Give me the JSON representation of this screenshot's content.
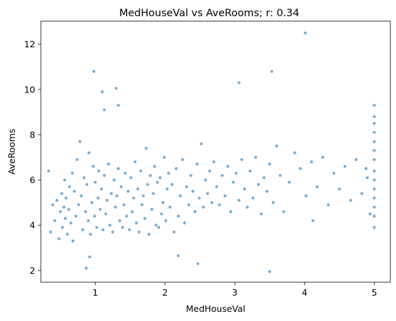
{
  "chart_data": {
    "type": "scatter",
    "title": "MedHouseVal vs AveRooms; r: 0.34",
    "xlabel": "MedHouseVal",
    "ylabel": "AveRooms",
    "xlim": [
      0.22,
      5.23
    ],
    "ylim": [
      1.48,
      13.02
    ],
    "xticks": [
      1,
      2,
      3,
      4,
      5
    ],
    "yticks": [
      2,
      4,
      6,
      8,
      10,
      12
    ],
    "grid": false,
    "legend": "none",
    "point_color": "#1f77b4",
    "point_alpha": 0.6,
    "x": [
      0.33,
      0.36,
      0.39,
      0.42,
      0.45,
      0.48,
      0.5,
      0.52,
      0.53,
      0.55,
      0.56,
      0.57,
      0.58,
      0.6,
      0.62,
      0.63,
      0.65,
      0.67,
      0.68,
      0.7,
      0.72,
      0.74,
      0.76,
      0.78,
      0.8,
      0.82,
      0.84,
      0.86,
      0.88,
      0.9,
      0.91,
      0.93,
      0.95,
      0.97,
      0.99,
      1.0,
      1.02,
      1.04,
      1.05,
      1.07,
      1.09,
      1.11,
      1.13,
      1.15,
      1.17,
      1.19,
      1.21,
      1.23,
      1.25,
      1.27,
      1.29,
      1.31,
      1.33,
      1.35,
      1.37,
      1.39,
      1.41,
      1.43,
      1.45,
      1.47,
      1.49,
      1.51,
      1.53,
      1.55,
      1.57,
      1.59,
      1.61,
      1.63,
      1.65,
      1.67,
      1.69,
      1.71,
      1.73,
      1.75,
      1.77,
      1.79,
      1.81,
      1.83,
      1.85,
      1.87,
      1.89,
      1.91,
      1.93,
      1.95,
      1.97,
      1.99,
      2.01,
      2.03,
      2.05,
      2.07,
      2.1,
      2.13,
      2.16,
      2.19,
      2.22,
      2.25,
      2.28,
      2.31,
      2.34,
      2.37,
      2.4,
      2.43,
      2.46,
      2.49,
      2.52,
      2.55,
      2.58,
      2.61,
      2.64,
      2.67,
      2.7,
      2.74,
      2.78,
      2.82,
      2.86,
      2.9,
      2.94,
      2.98,
      3.02,
      3.06,
      3.1,
      3.14,
      3.18,
      3.22,
      3.26,
      3.3,
      3.34,
      3.38,
      3.42,
      3.46,
      3.5,
      3.55,
      3.6,
      3.65,
      3.7,
      3.78,
      3.86,
      3.94,
      4.02,
      4.1,
      4.18,
      4.26,
      4.34,
      4.42,
      4.5,
      4.58,
      4.66,
      4.74,
      4.82,
      4.9,
      5.0,
      5.0,
      5.0,
      5.0,
      5.0,
      5.0,
      5.0,
      5.0,
      5.0,
      5.0,
      5.0,
      5.0,
      5.0,
      5.0,
      0.98,
      1.1,
      1.13,
      1.3,
      1.33,
      3.06,
      3.53,
      4.01,
      0.87,
      3.5,
      4.12,
      0.92,
      2.47,
      2.19,
      4.94,
      4.88
    ],
    "y": [
      6.4,
      3.7,
      4.9,
      4.2,
      5.1,
      3.4,
      4.6,
      5.4,
      3.9,
      4.8,
      6.0,
      4.3,
      5.2,
      3.6,
      4.7,
      5.7,
      4.1,
      6.3,
      3.3,
      5.5,
      4.4,
      6.9,
      4.9,
      7.7,
      5.3,
      3.8,
      6.1,
      4.6,
      5.8,
      4.2,
      7.2,
      3.6,
      5.0,
      6.6,
      4.4,
      5.9,
      3.9,
      5.2,
      6.4,
      4.7,
      5.6,
      3.8,
      6.2,
      4.5,
      5.1,
      6.7,
      4.0,
      5.4,
      3.7,
      6.0,
      4.8,
      5.3,
      6.5,
      4.2,
      5.7,
      3.9,
      4.9,
      6.3,
      4.4,
      5.5,
      3.8,
      6.1,
      4.6,
      5.2,
      6.8,
      4.1,
      5.6,
      3.7,
      6.4,
      4.9,
      5.3,
      4.3,
      7.4,
      5.8,
      3.6,
      6.2,
      4.7,
      5.4,
      6.6,
      4.0,
      5.9,
      3.9,
      6.1,
      4.5,
      5.0,
      7.0,
      4.2,
      5.6,
      6.3,
      4.8,
      5.8,
      3.7,
      6.5,
      4.4,
      5.3,
      6.9,
      4.1,
      5.7,
      4.9,
      6.2,
      5.5,
      4.6,
      6.7,
      5.2,
      7.6,
      4.8,
      6.0,
      5.4,
      6.4,
      5.0,
      6.8,
      5.7,
      4.9,
      6.2,
      5.3,
      6.6,
      4.6,
      5.9,
      6.3,
      5.1,
      6.9,
      5.6,
      4.8,
      6.4,
      5.2,
      7.0,
      5.8,
      4.5,
      6.1,
      5.5,
      6.7,
      5.0,
      7.5,
      6.2,
      4.6,
      5.9,
      7.2,
      6.5,
      5.3,
      6.8,
      5.7,
      7.0,
      4.9,
      6.3,
      5.6,
      6.6,
      5.1,
      6.9,
      5.4,
      6.1,
      9.3,
      8.8,
      8.5,
      8.1,
      7.7,
      7.3,
      6.9,
      6.4,
      6.0,
      5.6,
      5.2,
      4.8,
      4.4,
      3.9,
      10.8,
      9.9,
      9.1,
      10.05,
      9.3,
      10.3,
      10.8,
      12.5,
      2.1,
      1.95,
      4.2,
      2.6,
      2.3,
      2.65,
      4.5,
      6.5
    ]
  }
}
